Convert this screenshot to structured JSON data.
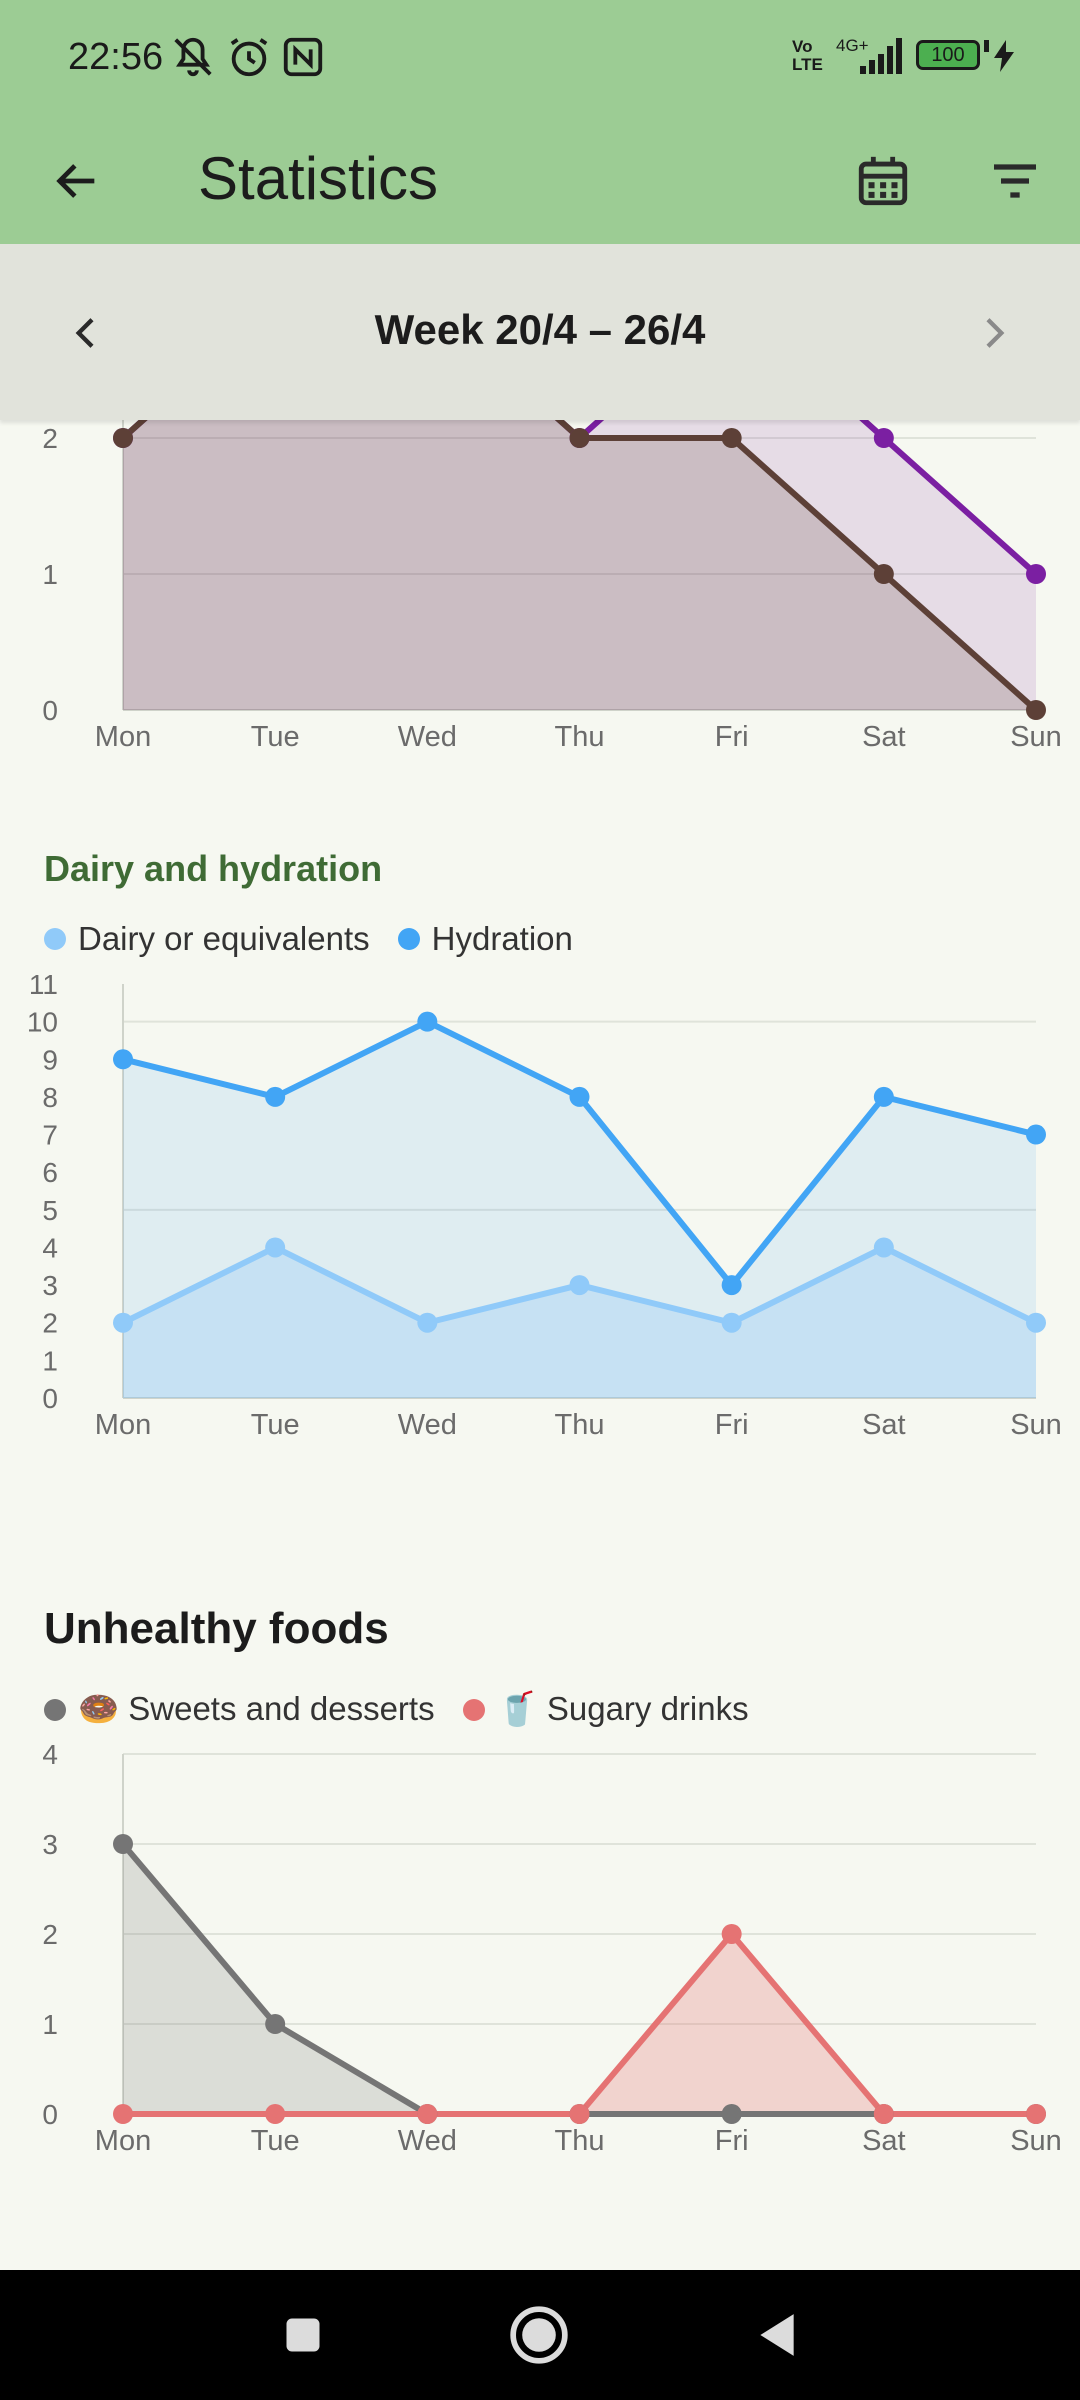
{
  "status_bar": {
    "time": "22:56",
    "battery": "100",
    "network": "4G+",
    "volte_top": "Vo",
    "volte_bottom": "LTE",
    "icons": [
      "mute-icon",
      "alarm-icon",
      "nfc-icon",
      "signal-icon",
      "battery-icon",
      "charging-icon"
    ]
  },
  "app_bar": {
    "title": "Statistics",
    "icons": [
      "back-arrow-icon",
      "calendar-icon",
      "filter-icon"
    ]
  },
  "week_nav": {
    "label": "Week 20/4 – 26/4",
    "icons": [
      "chevron-left-icon",
      "chevron-right-icon"
    ]
  },
  "colors": {
    "app_bar": "#9ccc94",
    "background": "#f6f8f1",
    "brown_series": "#5d4037",
    "purple_series": "#7b1fa2",
    "dairy": "#90caf9",
    "hydration": "#42a5f5",
    "sweets": "#757575",
    "sugary_drinks": "#e57373",
    "section_green": "#3f6b35"
  },
  "chart_data": [
    {
      "type": "area",
      "title": "",
      "categories": [
        "Mon",
        "Tue",
        "Wed",
        "Thu",
        "Fri",
        "Sat",
        "Sun"
      ],
      "ylim": [
        0,
        3
      ],
      "visible_y_ticks": [
        0,
        1,
        2
      ],
      "grid": true,
      "series": [
        {
          "values": [
            2,
            3,
            3,
            2,
            3,
            2,
            1
          ]
        },
        {
          "values": [
            2,
            3,
            3,
            2,
            2,
            1,
            0
          ]
        }
      ]
    },
    {
      "type": "area",
      "title": "Dairy and hydration",
      "categories": [
        "Mon",
        "Tue",
        "Wed",
        "Thu",
        "Fri",
        "Sat",
        "Sun"
      ],
      "ylim": [
        0,
        11
      ],
      "y_ticks": [
        0,
        1,
        2,
        3,
        4,
        5,
        6,
        7,
        8,
        9,
        10,
        11
      ],
      "grid": true,
      "legend": "top-left",
      "series": [
        {
          "name": "Dairy or equivalents",
          "values": [
            2,
            4,
            2,
            3,
            2,
            4,
            2
          ]
        },
        {
          "name": "Hydration",
          "values": [
            9,
            8,
            10,
            8,
            3,
            8,
            7
          ]
        }
      ]
    },
    {
      "type": "area",
      "title": "Unhealthy foods",
      "categories": [
        "Mon",
        "Tue",
        "Wed",
        "Thu",
        "Fri",
        "Sat",
        "Sun"
      ],
      "ylim": [
        0,
        4
      ],
      "y_ticks": [
        0,
        1,
        2,
        3,
        4
      ],
      "grid": true,
      "legend": "top-left",
      "series": [
        {
          "name": "🍩 Sweets and desserts",
          "values": [
            3,
            1,
            0,
            0,
            0,
            0,
            0
          ]
        },
        {
          "name": "🥤 Sugary drinks",
          "values": [
            0,
            0,
            0,
            0,
            2,
            0,
            0
          ]
        }
      ]
    }
  ],
  "nav_bar": {
    "icons": [
      "recents-square-icon",
      "home-circle-icon",
      "back-triangle-icon"
    ]
  }
}
